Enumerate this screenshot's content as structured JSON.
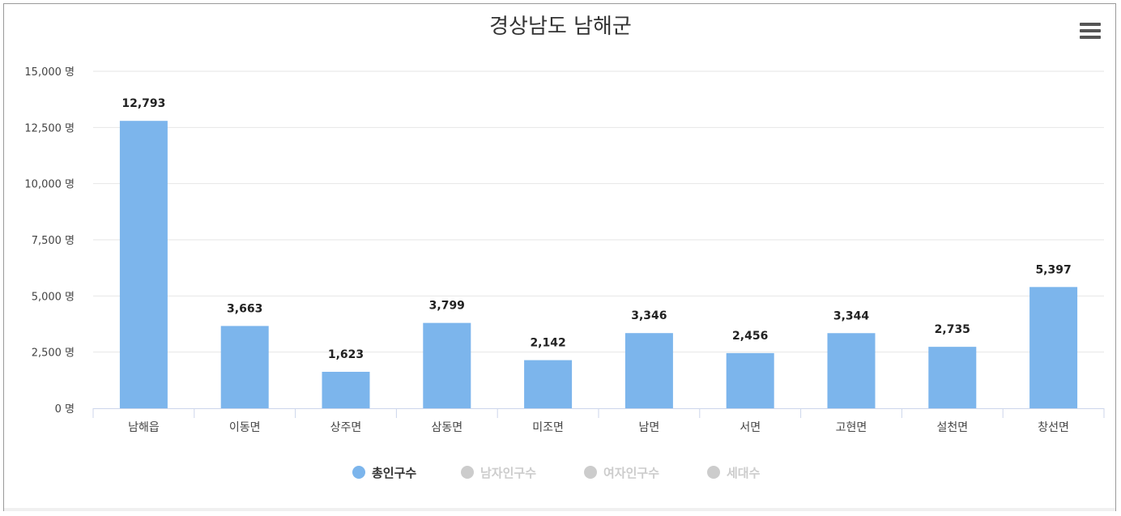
{
  "title": "경상남도 남해군",
  "menu_icon": "hamburger-menu-icon",
  "colors": {
    "bar": "#7cb5ec",
    "active_legend": "#7cb5ec",
    "inactive_legend": "#cccccc",
    "grid": "#e6e6e6",
    "axis": "#ccd6eb"
  },
  "chart_data": {
    "type": "bar",
    "title": "경상남도 남해군",
    "categories": [
      "남해읍",
      "이동면",
      "상주면",
      "삼동면",
      "미조면",
      "남면",
      "서면",
      "고현면",
      "설천면",
      "창선면"
    ],
    "series": [
      {
        "name": "총인구수",
        "values": [
          12793,
          3663,
          1623,
          3799,
          2142,
          3346,
          2456,
          3344,
          2735,
          5397
        ],
        "visible": true
      }
    ],
    "data_labels": [
      "12,793",
      "3,663",
      "1,623",
      "3,799",
      "2,142",
      "3,346",
      "2,456",
      "3,344",
      "2,735",
      "5,397"
    ],
    "yticks": [
      0,
      2500,
      5000,
      7500,
      10000,
      12500,
      15000
    ],
    "ytick_labels": [
      "0 명",
      "2,500 명",
      "5,000 명",
      "7,500 명",
      "10,000 명",
      "12,500 명",
      "15,000 명"
    ],
    "ylim": [
      0,
      15000
    ],
    "grid": true,
    "legend_position": "bottom-center"
  },
  "legend": [
    {
      "label": "총인구수",
      "active": true
    },
    {
      "label": "남자인구수",
      "active": false
    },
    {
      "label": "여자인구수",
      "active": false
    },
    {
      "label": "세대수",
      "active": false
    }
  ]
}
